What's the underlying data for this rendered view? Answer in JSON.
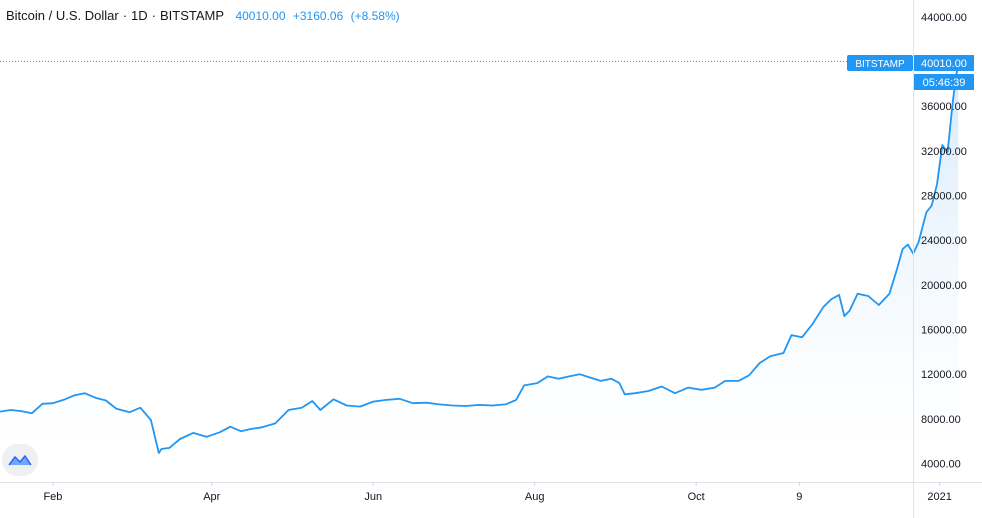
{
  "legend": {
    "symbol": "Bitcoin / U.S. Dollar",
    "interval": "1D",
    "exchange": "BITSTAMP",
    "last": "40010.00",
    "change": "+3160.06",
    "change_pct": "(+8.58%)"
  },
  "price_tag": {
    "label": "BITSTAMP",
    "price": "40010.00",
    "countdown": "05:46:39"
  },
  "colors": {
    "line": "#2196f3",
    "fill_top": "#cfe6fb",
    "tag_bg": "#2196f3",
    "axis_border": "#e0e3eb"
  },
  "icons": {
    "logo": "tradingview-logo-icon"
  },
  "chart_data": {
    "type": "area",
    "title": "Bitcoin / U.S. Dollar",
    "xlabel": "",
    "ylabel": "",
    "ylim": [
      2350,
      45500
    ],
    "xlim": [
      "2020-01-12",
      "2021-01-17"
    ],
    "grid": false,
    "y_ticks": [
      "44000.00",
      "36000.00",
      "32000.00",
      "28000.00",
      "24000.00",
      "20000.00",
      "16000.00",
      "12000.00",
      "8000.00",
      "4000.00"
    ],
    "y_tick_values": [
      44000,
      36000,
      32000,
      28000,
      24000,
      20000,
      16000,
      12000,
      8000,
      4000
    ],
    "x_ticks": [
      "Feb",
      "Apr",
      "Jun",
      "Aug",
      "Oct",
      "9",
      "2021"
    ],
    "x_tick_dates": [
      "2020-02-01",
      "2020-04-01",
      "2020-06-01",
      "2020-08-01",
      "2020-10-01",
      "2020-11-09",
      "2021-01-01"
    ],
    "series": [
      {
        "x": [
          "2020-01-12",
          "2020-01-16",
          "2020-01-20",
          "2020-01-24",
          "2020-01-28",
          "2020-02-01",
          "2020-02-05",
          "2020-02-09",
          "2020-02-13",
          "2020-02-17",
          "2020-02-21",
          "2020-02-25",
          "2020-03-01",
          "2020-03-05",
          "2020-03-09",
          "2020-03-12",
          "2020-03-13",
          "2020-03-16",
          "2020-03-20",
          "2020-03-25",
          "2020-03-30",
          "2020-04-04",
          "2020-04-08",
          "2020-04-12",
          "2020-04-16",
          "2020-04-20",
          "2020-04-25",
          "2020-04-30",
          "2020-05-05",
          "2020-05-09",
          "2020-05-12",
          "2020-05-17",
          "2020-05-22",
          "2020-05-27",
          "2020-06-01",
          "2020-06-06",
          "2020-06-11",
          "2020-06-16",
          "2020-06-21",
          "2020-06-26",
          "2020-07-01",
          "2020-07-06",
          "2020-07-11",
          "2020-07-16",
          "2020-07-21",
          "2020-07-25",
          "2020-07-28",
          "2020-08-02",
          "2020-08-06",
          "2020-08-10",
          "2020-08-14",
          "2020-08-18",
          "2020-08-22",
          "2020-08-26",
          "2020-08-30",
          "2020-09-02",
          "2020-09-04",
          "2020-09-08",
          "2020-09-13",
          "2020-09-18",
          "2020-09-23",
          "2020-09-28",
          "2020-10-03",
          "2020-10-08",
          "2020-10-12",
          "2020-10-17",
          "2020-10-21",
          "2020-10-25",
          "2020-10-29",
          "2020-11-03",
          "2020-11-06",
          "2020-11-10",
          "2020-11-14",
          "2020-11-18",
          "2020-11-21",
          "2020-11-24",
          "2020-11-26",
          "2020-11-28",
          "2020-12-01",
          "2020-12-05",
          "2020-12-09",
          "2020-12-13",
          "2020-12-16",
          "2020-12-18",
          "2020-12-20",
          "2020-12-22",
          "2020-12-24",
          "2020-12-27",
          "2020-12-29",
          "2020-12-31",
          "2021-01-02",
          "2021-01-04",
          "2021-01-06",
          "2021-01-08"
        ],
        "values": [
          8650,
          8800,
          8700,
          8500,
          9350,
          9400,
          9700,
          10100,
          10300,
          9900,
          9650,
          8900,
          8600,
          9000,
          7900,
          4950,
          5300,
          5400,
          6200,
          6750,
          6400,
          6800,
          7300,
          6900,
          7100,
          7250,
          7600,
          8800,
          9000,
          9600,
          8800,
          9750,
          9200,
          9100,
          9550,
          9700,
          9800,
          9400,
          9450,
          9300,
          9200,
          9150,
          9250,
          9200,
          9300,
          9700,
          11000,
          11200,
          11800,
          11600,
          11800,
          12000,
          11700,
          11400,
          11600,
          11200,
          10200,
          10300,
          10500,
          10900,
          10300,
          10800,
          10600,
          10800,
          11400,
          11400,
          11900,
          13000,
          13600,
          13900,
          15500,
          15300,
          16500,
          18000,
          18700,
          19100,
          17200,
          17700,
          19200,
          19000,
          18200,
          19200,
          21500,
          23200,
          23600,
          22800,
          23800,
          26500,
          27100,
          29000,
          32500,
          31900,
          36500,
          40010
        ]
      }
    ]
  }
}
